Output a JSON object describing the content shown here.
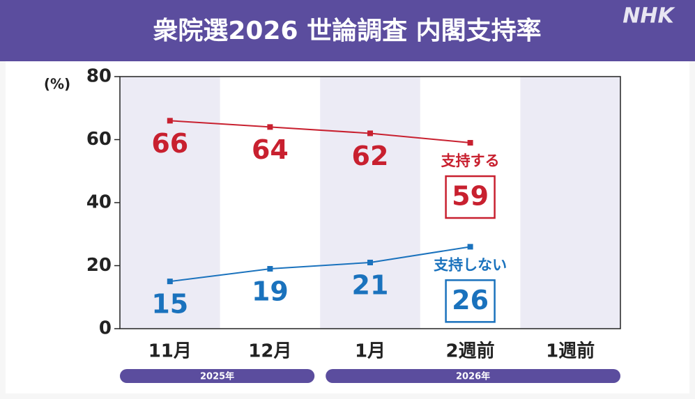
{
  "header": {
    "title": "衆院選2026 世論調査 内閣支持率",
    "logo": "NHK"
  },
  "chart_data": {
    "type": "line",
    "y_unit": "(%)",
    "categories": [
      "11月",
      "12月",
      "1月",
      "2週前",
      "1週前"
    ],
    "category_groups": [
      {
        "label": "2025年",
        "categories": [
          "11月",
          "12月"
        ]
      },
      {
        "label": "2026年",
        "categories": [
          "1月",
          "2週前",
          "1週前"
        ]
      }
    ],
    "series": [
      {
        "name": "支持する",
        "color": "#c8202f",
        "values": [
          66,
          64,
          62,
          59,
          null
        ]
      },
      {
        "name": "支持しない",
        "color": "#1a72bd",
        "values": [
          15,
          19,
          21,
          26,
          null
        ]
      }
    ],
    "ylim": [
      0,
      80
    ],
    "yticks": [
      0,
      20,
      40,
      60,
      80
    ],
    "shade_color": "#ecebf5",
    "band_color": "#5b4d9e"
  }
}
